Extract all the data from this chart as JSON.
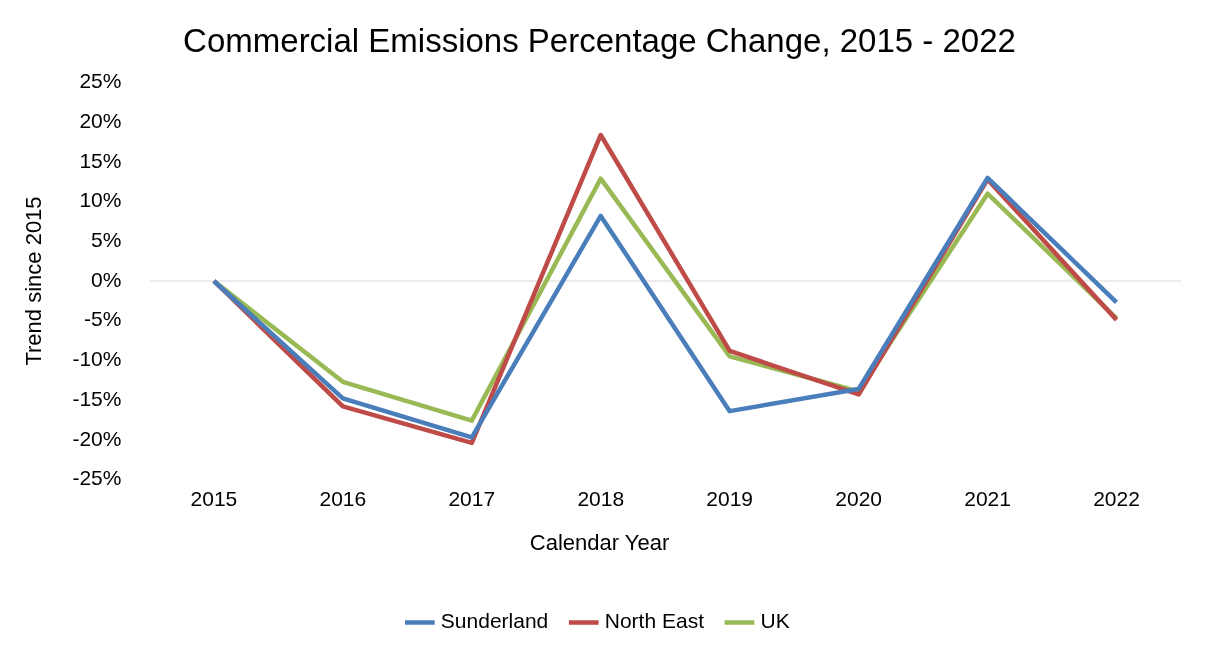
{
  "chart_data": {
    "type": "line",
    "title": "Commercial Emissions Percentage Change, 2015 - 2022",
    "xlabel": "Calendar Year",
    "ylabel": "Trend since 2015",
    "categories": [
      "2015",
      "2016",
      "2017",
      "2018",
      "2019",
      "2020",
      "2021",
      "2022"
    ],
    "series": [
      {
        "name": "Sunderland",
        "color": "#4a7ebb",
        "values": [
          0,
          -14.8,
          -19.7,
          8.2,
          -16.4,
          -13.6,
          13.0,
          -2.7
        ]
      },
      {
        "name": "North East",
        "color": "#be4b48",
        "values": [
          0,
          -15.8,
          -20.4,
          18.4,
          -8.8,
          -14.3,
          12.8,
          -4.9
        ]
      },
      {
        "name": "UK",
        "color": "#98b954",
        "values": [
          0,
          -12.7,
          -17.6,
          12.9,
          -9.5,
          -13.9,
          11.0,
          -4.7
        ]
      }
    ],
    "ylim": [
      -25,
      25
    ],
    "yticks": [
      {
        "value": -25,
        "label": "-25%"
      },
      {
        "value": -20,
        "label": "-20%"
      },
      {
        "value": -15,
        "label": "-15%"
      },
      {
        "value": -10,
        "label": "-10%"
      },
      {
        "value": -5,
        "label": "-5%"
      },
      {
        "value": 0,
        "label": "0%"
      },
      {
        "value": 5,
        "label": "5%"
      },
      {
        "value": 10,
        "label": "10%"
      },
      {
        "value": 15,
        "label": "15%"
      },
      {
        "value": 20,
        "label": "20%"
      },
      {
        "value": 25,
        "label": "25%"
      }
    ],
    "ref_lines": [
      {
        "axis": "y",
        "value": 0,
        "color": "#d9d9d9"
      }
    ],
    "grid": false,
    "legend": "bottom",
    "marker": "none",
    "line_style": "solid"
  }
}
